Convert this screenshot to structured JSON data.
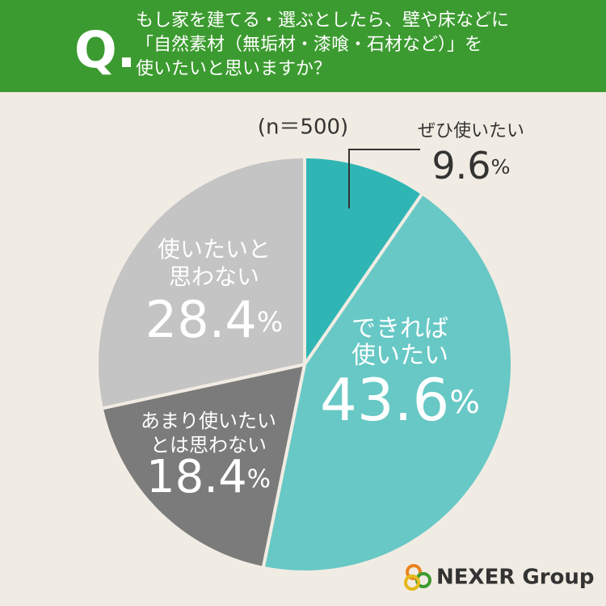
{
  "chart_data": {
    "type": "pie",
    "title_marker": "Q.",
    "title": [
      "もし家を建てる・選ぶとしたら、壁や床などに",
      "「自然素材（無垢材・漆喰・石材など）」を",
      "使いたいと思いますか？"
    ],
    "note": "(n＝500)",
    "categories": [
      [
        "ぜひ使いたい"
      ],
      [
        "できれば",
        "使いたい"
      ],
      [
        "あまり使いたい",
        "とは思わない"
      ],
      [
        "使いたいと",
        "思わない"
      ]
    ],
    "values": [
      9.6,
      43.6,
      18.4,
      28.4
    ],
    "value_labels": [
      "9.6%",
      "43.6%",
      "18.4%",
      "28.4%"
    ],
    "colors": [
      "#2fb6b4",
      "#67c8c5",
      "#7b7b7b",
      "#c4c4c4"
    ],
    "logo": "NEXER Group"
  }
}
